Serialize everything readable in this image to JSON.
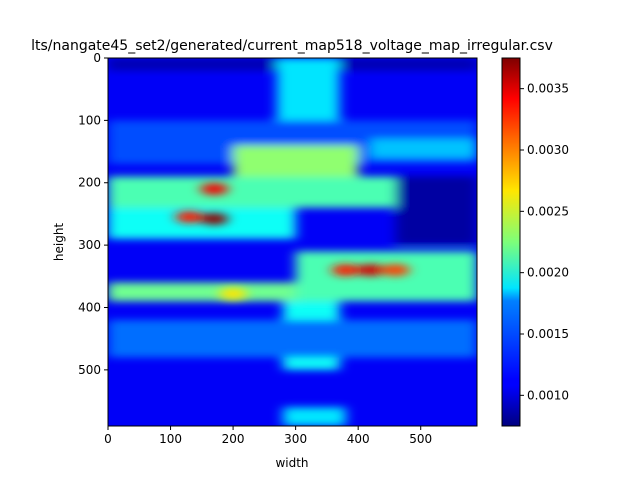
{
  "chart_data": {
    "type": "heatmap",
    "title": "lts/nangate45_set2/generated/current_map518_voltage_map_irregular.csv",
    "xlabel": "width",
    "ylabel": "height",
    "xlim": [
      0,
      590
    ],
    "ylim": [
      590,
      0
    ],
    "x_ticks": [
      0,
      100,
      200,
      300,
      400,
      500
    ],
    "y_ticks": [
      0,
      100,
      200,
      300,
      400,
      500
    ],
    "colormap": "jet",
    "colorbar": {
      "min": 0.00075,
      "max": 0.00375,
      "ticks": [
        "0.0010",
        "0.0015",
        "0.0020",
        "0.0025",
        "0.0030",
        "0.0035"
      ],
      "tick_values": [
        0.001,
        0.0015,
        0.002,
        0.0025,
        0.003,
        0.0035
      ]
    },
    "background_level": 0.0011,
    "regions": [
      {
        "x": [
          0,
          590
        ],
        "y": [
          0,
          20
        ],
        "value": 0.0009
      },
      {
        "x": [
          270,
          370
        ],
        "y": [
          0,
          130
        ],
        "value": 0.0018
      },
      {
        "x": [
          0,
          590
        ],
        "y": [
          100,
          170
        ],
        "value": 0.00135
      },
      {
        "x": [
          200,
          400
        ],
        "y": [
          140,
          200
        ],
        "value": 0.0023
      },
      {
        "x": [
          0,
          470
        ],
        "y": [
          190,
          240
        ],
        "value": 0.0021
      },
      {
        "x": [
          420,
          590
        ],
        "y": [
          130,
          160
        ],
        "value": 0.0017
      },
      {
        "x": [
          0,
          300
        ],
        "y": [
          240,
          290
        ],
        "value": 0.0019
      },
      {
        "x": [
          460,
          590
        ],
        "y": [
          190,
          300
        ],
        "value": 0.00085
      },
      {
        "x": [
          300,
          590
        ],
        "y": [
          310,
          390
        ],
        "value": 0.0021
      },
      {
        "x": [
          0,
          300
        ],
        "y": [
          360,
          390
        ],
        "value": 0.0022
      },
      {
        "x": [
          280,
          370
        ],
        "y": [
          390,
          500
        ],
        "value": 0.0019
      },
      {
        "x": [
          0,
          590
        ],
        "y": [
          420,
          480
        ],
        "value": 0.00145
      },
      {
        "x": [
          280,
          380
        ],
        "y": [
          560,
          590
        ],
        "value": 0.0018
      }
    ],
    "hotspots": [
      {
        "x": 170,
        "y": 210,
        "value": 0.0034
      },
      {
        "x": 130,
        "y": 255,
        "value": 0.0033
      },
      {
        "x": 170,
        "y": 258,
        "value": 0.0037
      },
      {
        "x": 380,
        "y": 340,
        "value": 0.0033
      },
      {
        "x": 420,
        "y": 340,
        "value": 0.0035
      },
      {
        "x": 460,
        "y": 340,
        "value": 0.0032
      },
      {
        "x": 200,
        "y": 378,
        "value": 0.0027
      }
    ]
  }
}
